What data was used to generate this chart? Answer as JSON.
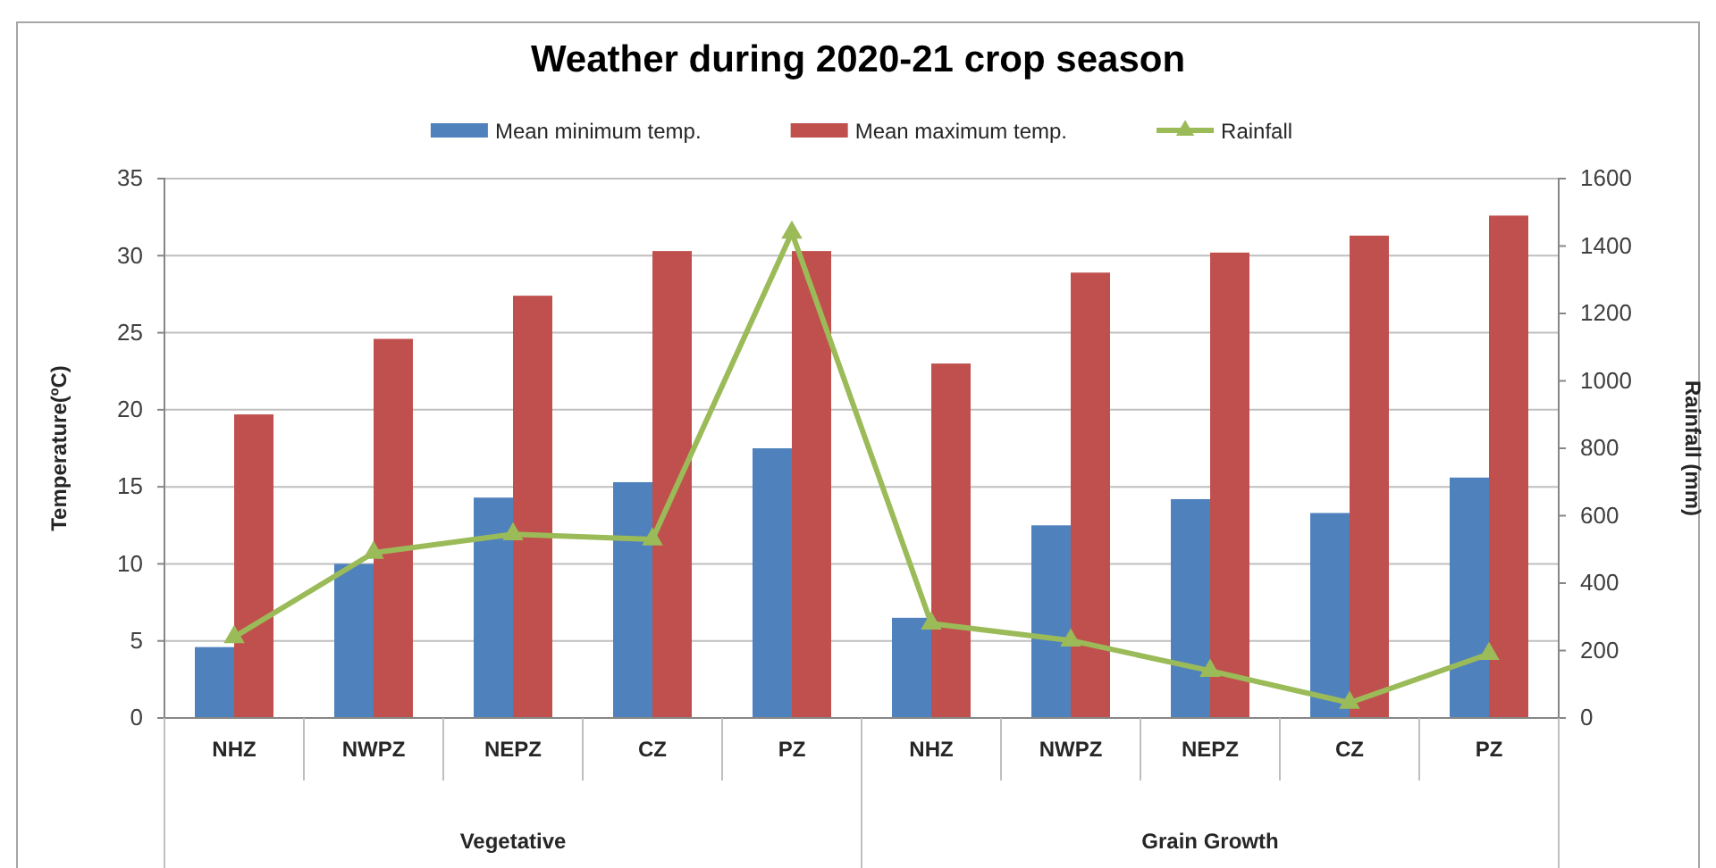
{
  "chart_data": {
    "type": "bar",
    "title": "Weather during 2020-21 crop season",
    "ylabel": "Temperature(ºC)",
    "y2label": "Rainfall (mm)",
    "categories": [
      "NHZ",
      "NWPZ",
      "NEPZ",
      "CZ",
      "PZ",
      "NHZ",
      "NWPZ",
      "NEPZ",
      "CZ",
      "PZ"
    ],
    "series": [
      {
        "name": "Mean minimum temp.",
        "color": "#4f81bd",
        "values": [
          4.6,
          10.0,
          14.3,
          15.3,
          17.5,
          6.5,
          12.5,
          14.2,
          13.3,
          15.6
        ]
      },
      {
        "name": "Mean maximum temp.",
        "color": "#c0504d",
        "values": [
          19.7,
          24.6,
          27.4,
          30.3,
          30.3,
          23.0,
          28.9,
          30.2,
          31.3,
          32.6
        ]
      },
      {
        "name": "Rainfall",
        "type": "line",
        "axis": "y2",
        "color": "#9bbb59",
        "values": [
          240,
          490,
          545,
          530,
          1440,
          280,
          230,
          140,
          45,
          190
        ]
      }
    ],
    "ylim": [
      0,
      35
    ],
    "yticks": [
      0,
      5,
      10,
      15,
      20,
      25,
      30,
      35
    ],
    "y2lim": [
      0,
      1600
    ],
    "y2ticks": [
      0,
      200,
      400,
      600,
      800,
      1000,
      1200,
      1400,
      1600
    ],
    "grid": "y",
    "legend": "top",
    "marker": "triangle",
    "line_style": "solid",
    "annotations": [
      "Vegetative",
      "Grain Growth"
    ]
  }
}
